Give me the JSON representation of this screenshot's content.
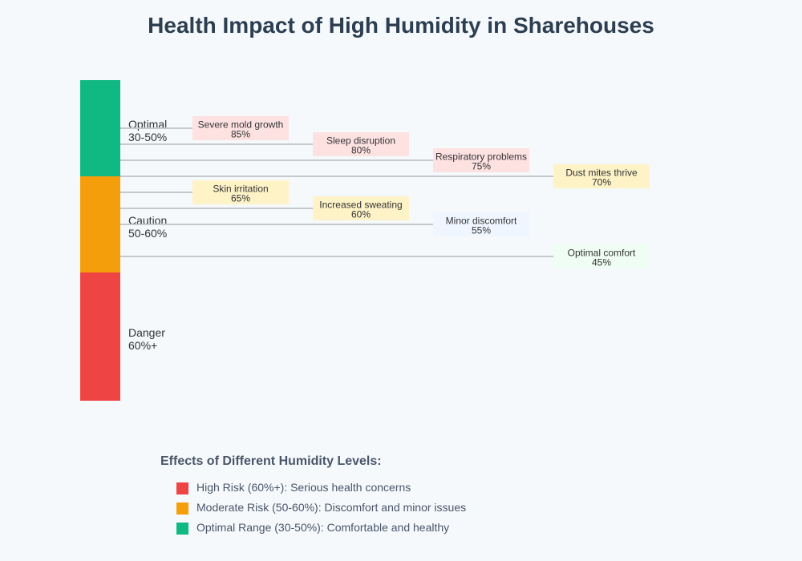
{
  "title": "Health Impact of High Humidity in Sharehouses",
  "zones": [
    {
      "name": "Optimal",
      "range": "30-50%"
    },
    {
      "name": "Caution",
      "range": "50-60%"
    },
    {
      "name": "Danger",
      "range": "60%+"
    }
  ],
  "effects": [
    {
      "label": "Severe mold growth",
      "value": "85%"
    },
    {
      "label": "Sleep disruption",
      "value": "80%"
    },
    {
      "label": "Respiratory problems",
      "value": "75%"
    },
    {
      "label": "Dust mites thrive",
      "value": "70%"
    },
    {
      "label": "Skin irritation",
      "value": "65%"
    },
    {
      "label": "Increased sweating",
      "value": "60%"
    },
    {
      "label": "Minor discomfort",
      "value": "55%"
    },
    {
      "label": "Optimal comfort",
      "value": "45%"
    }
  ],
  "legend": {
    "title": "Effects of Different Humidity Levels:",
    "items": [
      "High Risk (60%+): Serious health concerns",
      "Moderate Risk (50-60%): Discomfort and minor issues",
      "Optimal Range (30-50%): Comfortable and healthy"
    ]
  }
}
